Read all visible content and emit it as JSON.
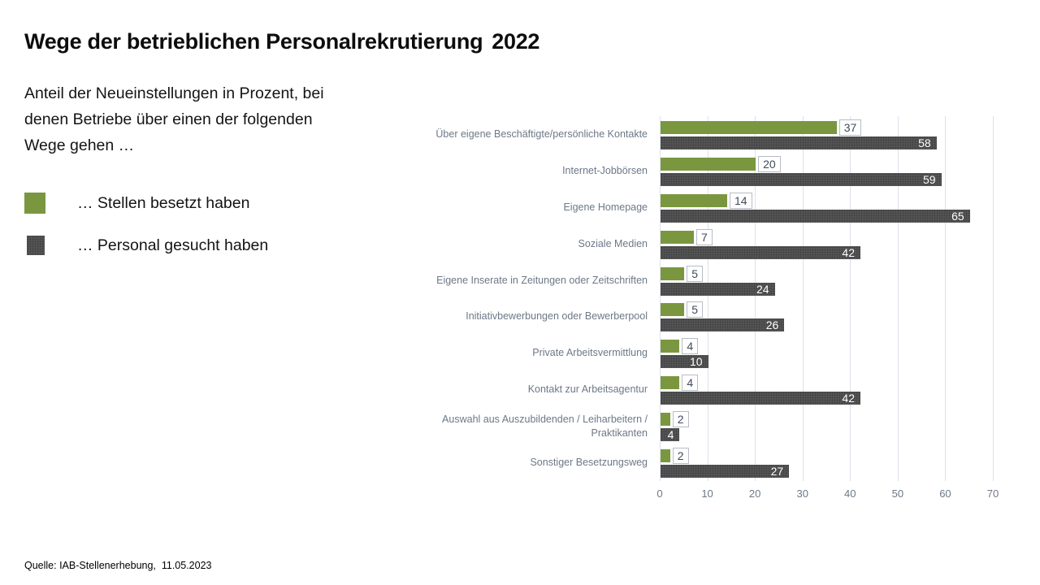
{
  "title": {
    "main": "Wege der betrieblichen Personalrekrutierung",
    "year": "2022"
  },
  "subtitle": "Anteil der Neueinstellungen in Prozent, bei\ndenen Betriebe über einen der folgenden\nWege gehen …",
  "legend": [
    {
      "label": "… Stellen besetzt haben",
      "color": "#7a9740"
    },
    {
      "label": "… Personal gesucht haben",
      "color": "#595959"
    }
  ],
  "source": "Quelle: IAB-Stellenerhebung,  11.05.2023",
  "chart_data": {
    "type": "bar",
    "orientation": "horizontal",
    "title": "Wege der betrieblichen Personalrekrutierung 2022",
    "xlabel": "",
    "ylabel": "",
    "categories": [
      "Über eigene Beschäftigte/persönliche Kontakte",
      "Internet-Jobbörsen",
      "Eigene Homepage",
      "Soziale Medien",
      "Eigene Inserate in Zeitungen oder Zeitschriften",
      "Initiativbewerbungen oder Bewerberpool",
      "Private Arbeitsvermittlung",
      "Kontakt zur Arbeitsagentur",
      "Auswahl aus Auszubildenden / Leiharbeitern /\nPraktikanten",
      "Sonstiger Besetzungsweg"
    ],
    "series": [
      {
        "name": "… Stellen besetzt haben",
        "color": "#7a9740",
        "values": [
          37,
          20,
          14,
          7,
          5,
          5,
          4,
          4,
          2,
          2
        ]
      },
      {
        "name": "… Personal gesucht haben",
        "color": "#595959",
        "values": [
          58,
          59,
          65,
          42,
          24,
          26,
          10,
          42,
          4,
          27
        ]
      }
    ],
    "xlim": [
      0,
      70
    ],
    "x_ticks": [
      0,
      10,
      20,
      30,
      40,
      50,
      60,
      70
    ],
    "grid": true,
    "value_labels": true,
    "gridline_color": "#dde1ea",
    "label_color": "#6d7887"
  }
}
